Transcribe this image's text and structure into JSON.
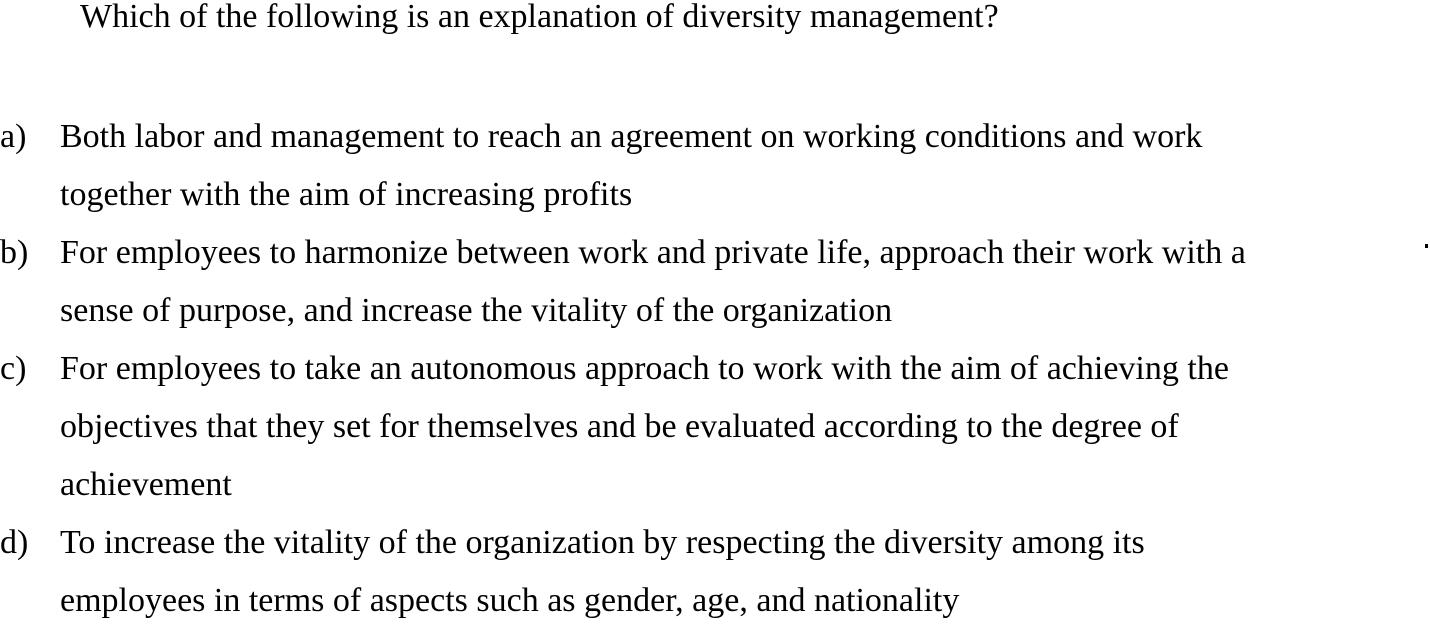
{
  "question": "Which of the following is an explanation of diversity management?",
  "options": [
    {
      "letter": "a)",
      "lines": [
        "Both labor and management to reach an agreement on working conditions and work",
        "together with the aim of increasing profits"
      ]
    },
    {
      "letter": "b)",
      "lines": [
        "For employees to harmonize between work and private life, approach their work with a",
        "sense of purpose, and increase the vitality of the organization"
      ]
    },
    {
      "letter": "c)",
      "lines": [
        "For employees to take an autonomous approach to work with the aim of achieving the",
        "objectives that they set for themselves and be evaluated according to the degree of",
        "achievement"
      ]
    },
    {
      "letter": "d)",
      "lines": [
        "To increase the vitality of the organization by respecting the diversity among its",
        "employees in terms of aspects such as gender, age, and nationality"
      ]
    }
  ]
}
